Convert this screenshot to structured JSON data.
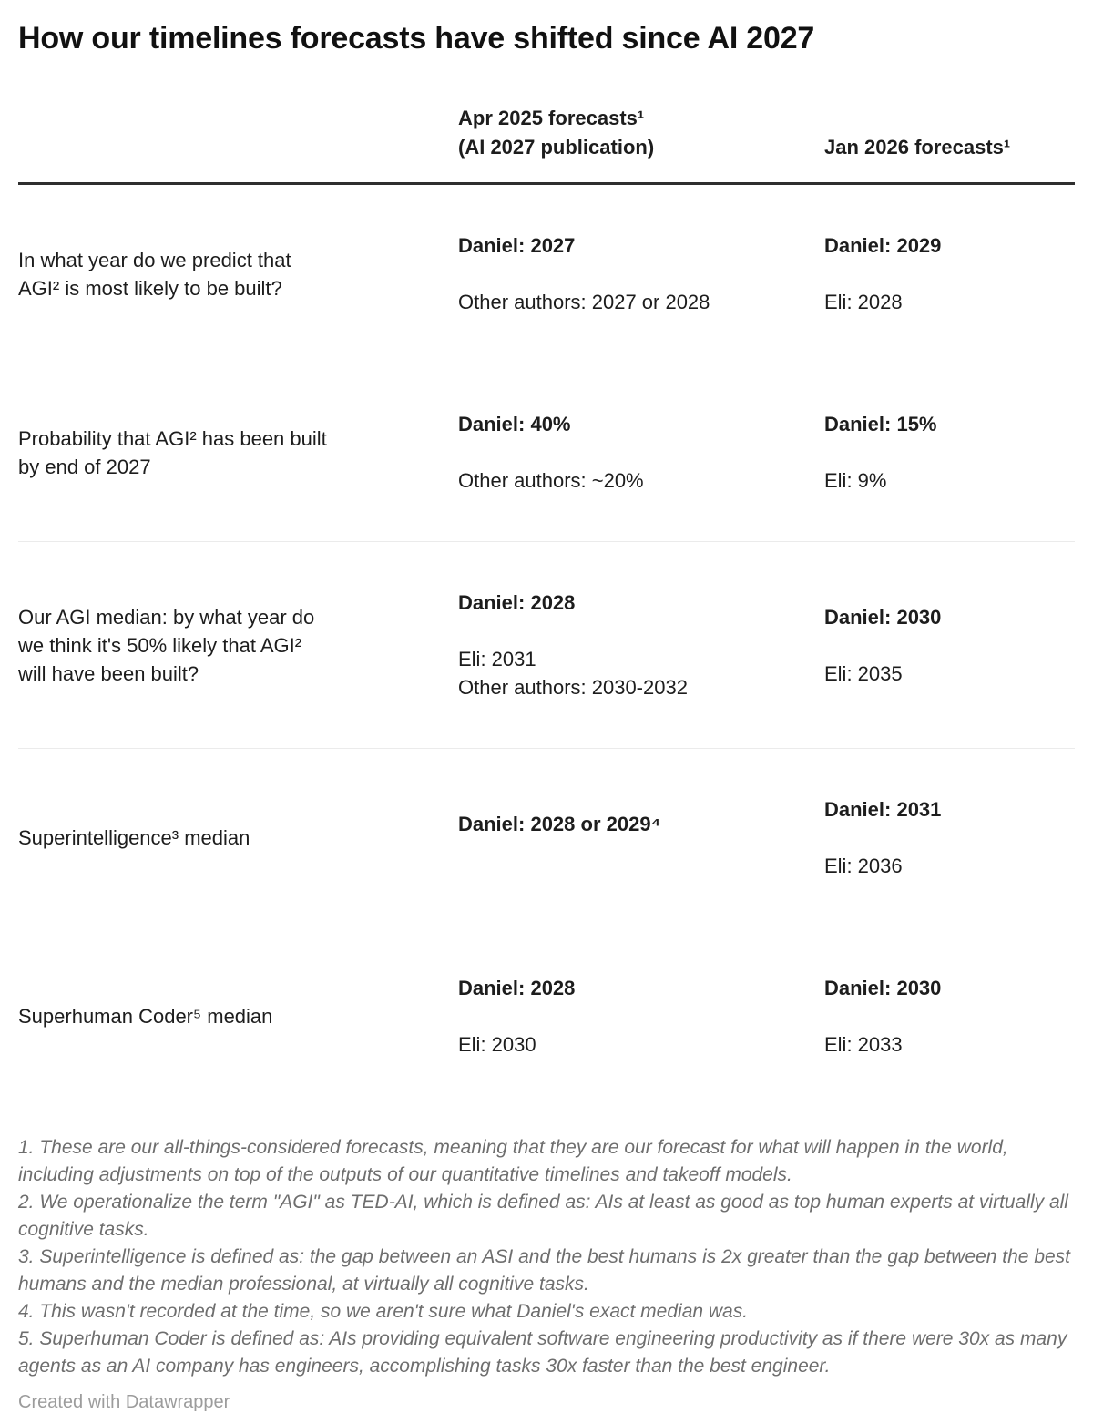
{
  "chart_data": {
    "type": "table",
    "title": "How our timelines forecasts have shifted since AI 2027",
    "columns": {
      "c1": "",
      "c2": "Apr 2025 forecasts¹\n(AI 2027 publication)",
      "c3": "Jan 2026 forecasts¹"
    },
    "rows": [
      {
        "question": "In what year do we predict that\nAGI² is most likely to be built?",
        "apr_primary": "Daniel: 2027",
        "apr_secondary": "Other authors: 2027 or 2028",
        "jan_primary": "Daniel: 2029",
        "jan_secondary": "Eli: 2028"
      },
      {
        "question": "Probability that AGI² has been built\nby end of 2027",
        "apr_primary": "Daniel: 40%",
        "apr_secondary": "Other authors: ~20%",
        "jan_primary": "Daniel: 15%",
        "jan_secondary": "Eli: 9%"
      },
      {
        "question": "Our AGI median: by what year do\nwe think it's 50% likely that AGI²\nwill have been built?",
        "apr_primary": "Daniel: 2028",
        "apr_secondary": "Eli: 2031\nOther authors: 2030-2032",
        "jan_primary": "Daniel: 2030",
        "jan_secondary": "Eli: 2035"
      },
      {
        "question": "Superintelligence³ median",
        "apr_primary": "Daniel: 2028 or 2029⁴",
        "apr_secondary": "",
        "jan_primary": "Daniel: 2031",
        "jan_secondary": "Eli: 2036"
      },
      {
        "question": "Superhuman Coder⁵ median",
        "apr_primary": "Daniel: 2028",
        "apr_secondary": "Eli: 2030",
        "jan_primary": "Daniel: 2030",
        "jan_secondary": "Eli: 2033"
      }
    ],
    "footnotes": [
      "1. These are our all-things-considered forecasts, meaning that they are our forecast for what will happen in the world, including adjustments on top of the outputs of our quantitative timelines and takeoff models.",
      "2. We operationalize the term \"AGI\" as TED-AI, which is defined as: AIs at least as good as top human experts at virtually all cognitive tasks.",
      "3. Superintelligence is defined as: the gap between an ASI and the best humans is 2x greater than the gap between the best humans and the median professional, at virtually all cognitive tasks.",
      "4. This wasn't recorded at the time, so we aren't sure what Daniel's exact median was.",
      "5. Superhuman Coder is defined as: AIs providing equivalent software engineering productivity as if there were 30x as many agents as an AI company has engineers, accomplishing tasks 30x faster than the best engineer."
    ],
    "layout_hints": {
      "header_rule_color": "#2e2e2e",
      "row_divider_color": "#ebebeb",
      "text_color": "#1d1d1d",
      "footnote_color": "#6e6e6e",
      "attribution_color": "#9c9c9c",
      "background_color": "#ffffff"
    }
  },
  "attribution": "Created with Datawrapper"
}
